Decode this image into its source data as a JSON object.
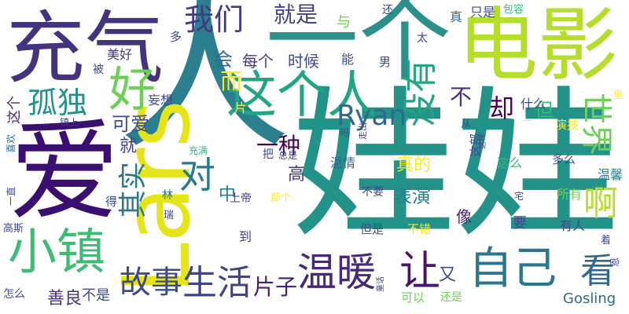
{
  "palette": {
    "purple": "#440154",
    "indigo": "#482878",
    "blue": "#3e4a89",
    "steel": "#31688e",
    "teal": "#26828e",
    "green": "#1f9e89",
    "mint": "#35b779",
    "lime": "#6ece58",
    "yellowgreen": "#b5de2b",
    "yellow": "#fde725"
  },
  "words": [
    {
      "text": "人"
    },
    {
      "text": "娃娃"
    },
    {
      "text": "爱"
    },
    {
      "text": "一个"
    },
    {
      "text": "电影"
    },
    {
      "text": "充气"
    },
    {
      "text": "Lars"
    },
    {
      "text": "这个人"
    },
    {
      "text": "没有"
    },
    {
      "text": "小镇"
    },
    {
      "text": "好"
    },
    {
      "text": "自己"
    },
    {
      "text": "温暖"
    },
    {
      "text": "让"
    },
    {
      "text": "看"
    },
    {
      "text": "生活"
    },
    {
      "text": "世界"
    },
    {
      "text": "孤独"
    },
    {
      "text": "我们"
    },
    {
      "text": "就是"
    },
    {
      "text": "对"
    },
    {
      "text": "故事"
    },
    {
      "text": "啊"
    },
    {
      "text": "Ryan"
    },
    {
      "text": "其实"
    },
    {
      "text": "却"
    },
    {
      "text": "片子"
    },
    {
      "text": "而"
    },
    {
      "text": "一种"
    },
    {
      "text": "可爱"
    },
    {
      "text": "表演"
    },
    {
      "text": "Gosling"
    },
    {
      "text": "善良"
    },
    {
      "text": "不是"
    },
    {
      "text": "每个"
    },
    {
      "text": "时候"
    },
    {
      "text": "会"
    },
    {
      "text": "真的"
    },
    {
      "text": "高"
    },
    {
      "text": "中"
    },
    {
      "text": "就"
    },
    {
      "text": "不"
    },
    {
      "text": "但"
    },
    {
      "text": "又"
    },
    {
      "text": "只是"
    },
    {
      "text": "包容"
    },
    {
      "text": "太"
    },
    {
      "text": "真"
    },
    {
      "text": "美好"
    },
    {
      "text": "这个"
    },
    {
      "text": "妄想"
    },
    {
      "text": "温情"
    },
    {
      "text": "什么"
    },
    {
      "text": "演技"
    },
    {
      "text": "温馨"
    },
    {
      "text": "这么"
    },
    {
      "text": "多么"
    },
    {
      "text": "所有"
    },
    {
      "text": "有人"
    },
    {
      "text": "不要"
    },
    {
      "text": "像"
    },
    {
      "text": "要"
    },
    {
      "text": "但是"
    },
    {
      "text": "不错"
    },
    {
      "text": "上帝"
    },
    {
      "text": "那个"
    },
    {
      "text": "到"
    },
    {
      "text": "怎么"
    },
    {
      "text": "可以"
    },
    {
      "text": "还是"
    },
    {
      "text": "高斯"
    },
    {
      "text": "林"
    },
    {
      "text": "瑞"
    },
    {
      "text": "得"
    },
    {
      "text": "充满"
    },
    {
      "text": "把"
    },
    {
      "text": "总是"
    },
    {
      "text": "镇上"
    },
    {
      "text": "喜欢"
    },
    {
      "text": "一直"
    },
    {
      "text": "走出"
    },
    {
      "text": "吗"
    },
    {
      "text": "这部"
    },
    {
      "text": "男"
    },
    {
      "text": "能"
    },
    {
      "text": "与"
    },
    {
      "text": "还"
    },
    {
      "text": "多"
    },
    {
      "text": "被"
    },
    {
      "text": "片"
    },
    {
      "text": "宅"
    },
    {
      "text": "着"
    },
    {
      "text": "恩"
    },
    {
      "text": "里"
    },
    {
      "text": "从"
    },
    {
      "text": "这样"
    },
    {
      "text": "童话"
    },
    {
      "text": "一"
    }
  ]
}
